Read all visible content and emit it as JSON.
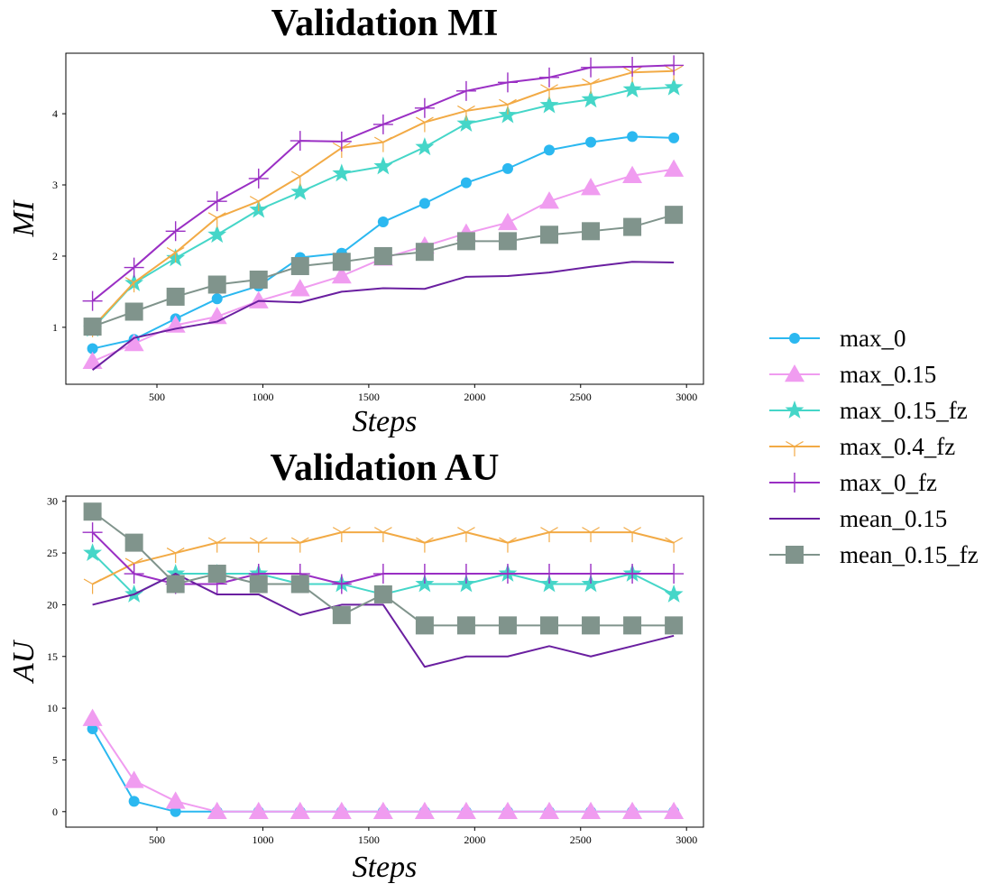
{
  "chart_data": [
    {
      "type": "line",
      "title": "Validation MI",
      "xlabel": "Steps",
      "ylabel": "MI",
      "xlim": [
        70,
        3080
      ],
      "ylim": [
        0.2,
        4.85
      ],
      "xticks": [
        500,
        1000,
        1500,
        2000,
        2500,
        3000
      ],
      "yticks": [
        1,
        2,
        3,
        4
      ],
      "x": [
        196,
        392,
        588,
        784,
        980,
        1176,
        1372,
        1568,
        1764,
        1960,
        2156,
        2352,
        2548,
        2744,
        2940
      ],
      "series": [
        {
          "name": "max_0",
          "values": [
            0.7,
            0.83,
            1.12,
            1.4,
            1.58,
            1.98,
            2.04,
            2.48,
            2.74,
            3.03,
            3.23,
            3.49,
            3.6,
            3.68,
            3.66
          ]
        },
        {
          "name": "max_0.15",
          "values": [
            0.52,
            0.77,
            1.03,
            1.15,
            1.37,
            1.54,
            1.72,
            1.97,
            2.14,
            2.32,
            2.47,
            2.77,
            2.96,
            3.13,
            3.22
          ]
        },
        {
          "name": "max_0.15_fz",
          "values": [
            0.98,
            1.62,
            1.97,
            2.3,
            2.65,
            2.9,
            3.16,
            3.26,
            3.53,
            3.86,
            3.98,
            4.12,
            4.2,
            4.34,
            4.37
          ]
        },
        {
          "name": "max_0.4_fz",
          "values": [
            1.0,
            1.63,
            2.05,
            2.54,
            2.77,
            3.12,
            3.52,
            3.6,
            3.88,
            4.04,
            4.13,
            4.34,
            4.42,
            4.58,
            4.6
          ]
        },
        {
          "name": "max_0_fz",
          "values": [
            1.37,
            1.84,
            2.35,
            2.77,
            3.09,
            3.62,
            3.61,
            3.85,
            4.08,
            4.32,
            4.44,
            4.51,
            4.65,
            4.66,
            4.68
          ]
        },
        {
          "name": "mean_0.15",
          "values": [
            0.4,
            0.85,
            0.98,
            1.08,
            1.37,
            1.35,
            1.5,
            1.55,
            1.54,
            1.71,
            1.72,
            1.77,
            1.85,
            1.92,
            1.91
          ]
        },
        {
          "name": "mean_0.15_fz",
          "values": [
            1.01,
            1.22,
            1.43,
            1.6,
            1.67,
            1.86,
            1.92,
            2.0,
            2.06,
            2.21,
            2.21,
            2.3,
            2.35,
            2.41,
            2.58
          ]
        }
      ]
    },
    {
      "type": "line",
      "title": "Validation AU",
      "xlabel": "Steps",
      "ylabel": "AU",
      "xlim": [
        70,
        3080
      ],
      "ylim": [
        -1.5,
        30.5
      ],
      "xticks": [
        500,
        1000,
        1500,
        2000,
        2500,
        3000
      ],
      "yticks": [
        0,
        5,
        10,
        15,
        20,
        25,
        30
      ],
      "x": [
        196,
        392,
        588,
        784,
        980,
        1176,
        1372,
        1568,
        1764,
        1960,
        2156,
        2352,
        2548,
        2744,
        2940
      ],
      "series": [
        {
          "name": "max_0",
          "values": [
            8,
            1,
            0,
            0,
            0,
            0,
            0,
            0,
            0,
            0,
            0,
            0,
            0,
            0,
            0
          ]
        },
        {
          "name": "max_0.15",
          "values": [
            9,
            3,
            1,
            0,
            0,
            0,
            0,
            0,
            0,
            0,
            0,
            0,
            0,
            0,
            0
          ]
        },
        {
          "name": "max_0.15_fz",
          "values": [
            25,
            21,
            23,
            23,
            23,
            22,
            22,
            21,
            22,
            22,
            23,
            22,
            22,
            23,
            21
          ]
        },
        {
          "name": "max_0.4_fz",
          "values": [
            22,
            24,
            25,
            26,
            26,
            26,
            27,
            27,
            26,
            27,
            26,
            27,
            27,
            27,
            26
          ]
        },
        {
          "name": "max_0_fz",
          "values": [
            27,
            23,
            22,
            22,
            23,
            23,
            22,
            23,
            23,
            23,
            23,
            23,
            23,
            23,
            23
          ]
        },
        {
          "name": "mean_0.15",
          "values": [
            20,
            21,
            23,
            21,
            21,
            19,
            20,
            20,
            14,
            15,
            15,
            16,
            15,
            16,
            17
          ]
        },
        {
          "name": "mean_0.15_fz",
          "values": [
            29,
            26,
            22,
            23,
            22,
            22,
            19,
            21,
            18,
            18,
            18,
            18,
            18,
            18,
            18
          ]
        }
      ]
    }
  ],
  "legend": {
    "placement": "right",
    "entries": [
      {
        "name": "max_0",
        "color": "#2bb8f0",
        "marker": "circle"
      },
      {
        "name": "max_0.15",
        "color": "#f09cf0",
        "marker": "triangle"
      },
      {
        "name": "max_0.15_fz",
        "color": "#45d6c8",
        "marker": "star"
      },
      {
        "name": "max_0.4_fz",
        "color": "#f2aa45",
        "marker": "tri_down"
      },
      {
        "name": "max_0_fz",
        "color": "#9a2fc4",
        "marker": "plus"
      },
      {
        "name": "mean_0.15",
        "color": "#6a1fa0",
        "marker": "none"
      },
      {
        "name": "mean_0.15_fz",
        "color": "#80948c",
        "marker": "square"
      }
    ]
  }
}
